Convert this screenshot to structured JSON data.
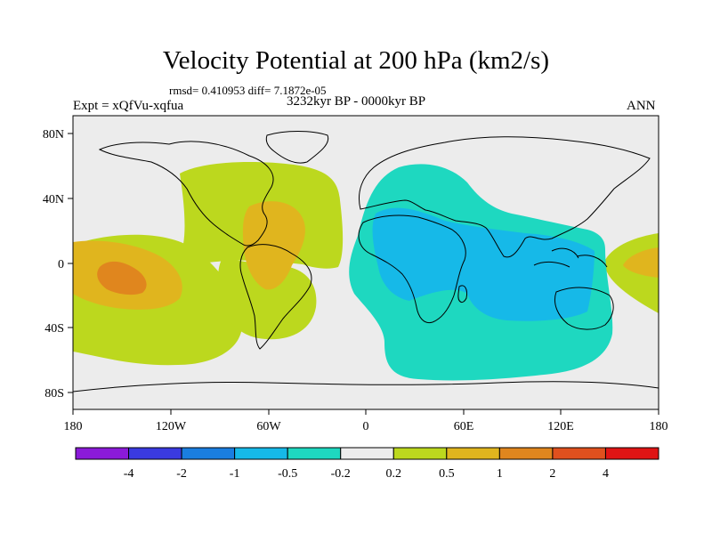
{
  "header": {
    "title": "Velocity Potential at 200 hPa (km2/s)",
    "stats": "rmsd= 0.410953  diff= 7.1872e-05",
    "expt": "Expt = xQfVu-xqfua",
    "period": "3232kyr BP - 0000kyr BP",
    "season": "ANN"
  },
  "axes": {
    "lat_labels": [
      "80N",
      "40N",
      "0",
      "40S",
      "80S"
    ],
    "lon_labels": [
      "180",
      "120W",
      "60W",
      "0",
      "60E",
      "120E",
      "180"
    ]
  },
  "colorbar": {
    "colors": [
      "#8b1ad9",
      "#3a3ae0",
      "#1a7ee0",
      "#16b9e8",
      "#1ed8c0",
      "#ececec",
      "#bcd81e",
      "#e0b51e",
      "#e0861e",
      "#e0501e",
      "#e01414"
    ],
    "labels": [
      "-4",
      "-2",
      "-1",
      "-0.5",
      "-0.2",
      "0.2",
      "0.5",
      "1",
      "2",
      "4"
    ]
  },
  "colors": {
    "background": "#ececec",
    "positive_weak": "#bcd81e",
    "positive_mid": "#e0b51e",
    "positive_strong": "#e0861e",
    "negative_weak": "#1ed8c0",
    "negative_mid": "#16b9e8"
  }
}
